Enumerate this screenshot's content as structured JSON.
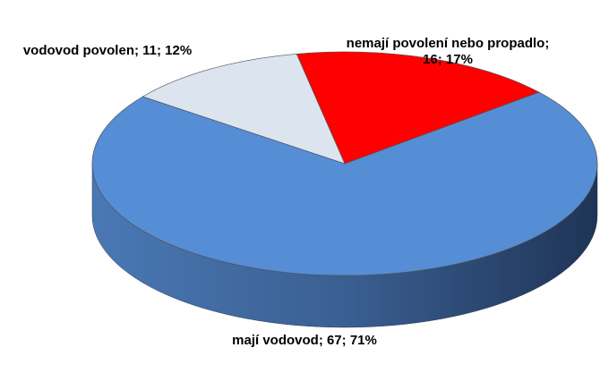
{
  "chart_data": {
    "type": "pie3d",
    "values": [
      16,
      67,
      11
    ],
    "value_labels": [
      "nemají povolení nebo propadlo; 16; 17%",
      "mají vodovod; 67; 71%",
      "vodovod povolen; 11; 12%"
    ],
    "colors": [
      "#ff0000",
      "#558ed5",
      "#dce4f0"
    ]
  }
}
